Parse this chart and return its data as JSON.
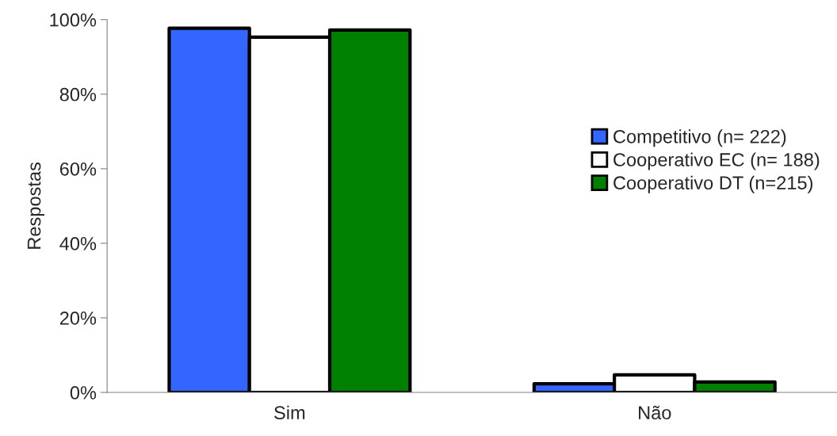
{
  "chart_data": {
    "type": "bar",
    "ylabel": "Respostas",
    "categories": [
      "Sim",
      "Não"
    ],
    "series": [
      {
        "name": "Competitivo (n= 222)",
        "color": "#3366ff",
        "values": [
          97.7,
          2.3
        ]
      },
      {
        "name": "Cooperativo EC (n= 188)",
        "color": "#ffffff",
        "values": [
          95.3,
          4.7
        ]
      },
      {
        "name": "Cooperativo DT (n=215)",
        "color": "#008000",
        "values": [
          97.2,
          2.8
        ]
      }
    ],
    "ylim": [
      0,
      100
    ],
    "yticks": [
      {
        "value": 0,
        "label": "0%"
      },
      {
        "value": 20,
        "label": "20%"
      },
      {
        "value": 40,
        "label": "40%"
      },
      {
        "value": 60,
        "label": "60%"
      },
      {
        "value": 80,
        "label": "80%"
      },
      {
        "value": 100,
        "label": "100%"
      }
    ],
    "grid": false,
    "legend": "right"
  }
}
